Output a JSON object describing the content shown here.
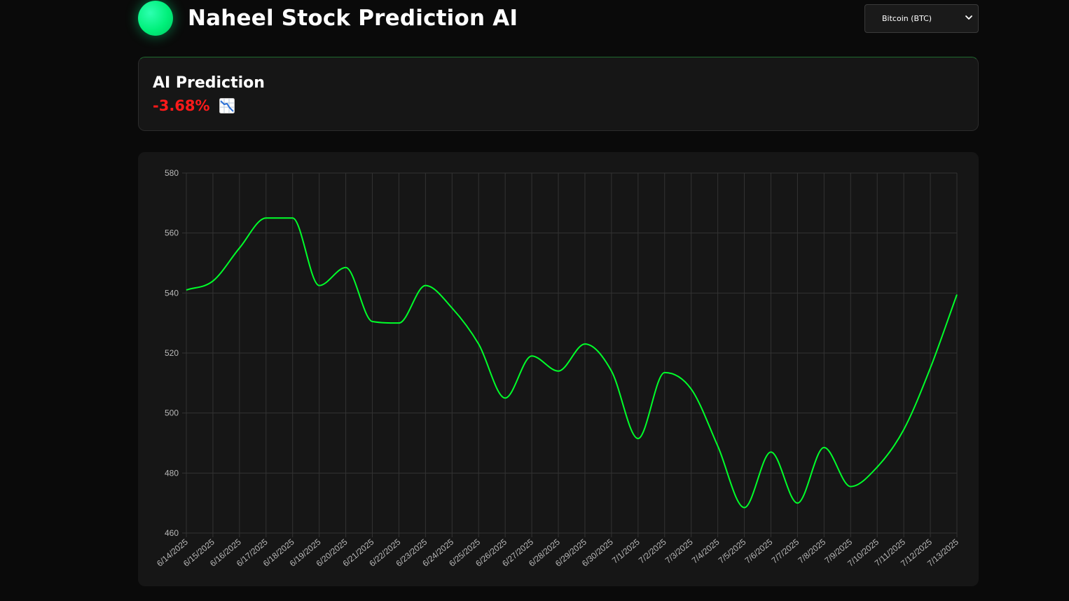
{
  "header": {
    "title": "Naheel Stock Prediction AI",
    "asset_select": {
      "selected": "Bitcoin (BTC)",
      "options": [
        "Bitcoin (BTC)"
      ]
    }
  },
  "prediction": {
    "title": "AI Prediction",
    "value": "-3.68%",
    "trend_icon": "chart-decreasing-icon",
    "value_color": "#ff1a1a"
  },
  "colors": {
    "accent": "#00ff2a",
    "background": "#0a0a0a",
    "card": "#161616"
  },
  "chart_data": {
    "type": "line",
    "title": "",
    "xlabel": "",
    "ylabel": "",
    "ylim": [
      460,
      580
    ],
    "y_ticks": [
      460,
      480,
      500,
      520,
      540,
      560,
      580
    ],
    "grid": true,
    "legend": "none",
    "x": [
      "6/14/2025",
      "6/15/2025",
      "6/16/2025",
      "6/17/2025",
      "6/18/2025",
      "6/19/2025",
      "6/20/2025",
      "6/21/2025",
      "6/22/2025",
      "6/23/2025",
      "6/24/2025",
      "6/25/2025",
      "6/26/2025",
      "6/27/2025",
      "6/28/2025",
      "6/29/2025",
      "6/30/2025",
      "7/1/2025",
      "7/2/2025",
      "7/3/2025",
      "7/4/2025",
      "7/5/2025",
      "7/6/2025",
      "7/7/2025",
      "7/8/2025",
      "7/9/2025",
      "7/10/2025",
      "7/11/2025",
      "7/12/2025",
      "7/13/2025"
    ],
    "series": [
      {
        "color": "#00ff2a",
        "values": [
          541,
          544,
          555,
          565,
          565,
          542.5,
          548.5,
          530.5,
          530,
          542.5,
          535,
          523,
          505,
          519,
          514,
          523,
          514,
          491.5,
          513.5,
          508,
          489,
          468.5,
          487,
          470,
          488.5,
          475.5,
          482,
          494.5,
          515,
          539.5
        ]
      }
    ]
  }
}
